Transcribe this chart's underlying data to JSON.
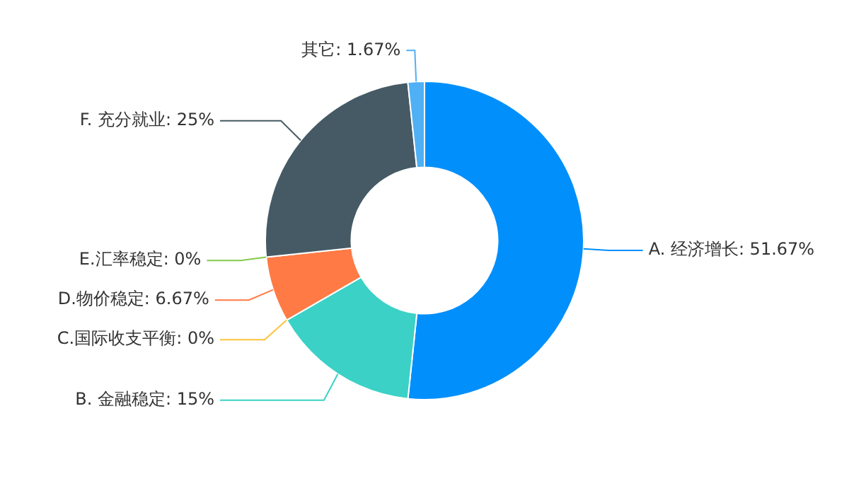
{
  "chart_data": {
    "type": "donut",
    "categories": [
      "A. 经济增长",
      "B. 金融稳定",
      "C.国际收支平衡",
      "D.物价稳定",
      "E.汇率稳定",
      "F. 充分就业",
      "其它"
    ],
    "values": [
      51.67,
      15,
      0,
      6.67,
      0,
      25,
      1.67
    ],
    "value_labels": [
      "51.67%",
      "15%",
      "0%",
      "6.67%",
      "0%",
      "25%",
      "1.67%"
    ],
    "colors": [
      "#008ffb",
      "#3bd1c6",
      "#fec33c",
      "#ff7a45",
      "#83c94c",
      "#455a64",
      "#4fb0f5"
    ]
  }
}
